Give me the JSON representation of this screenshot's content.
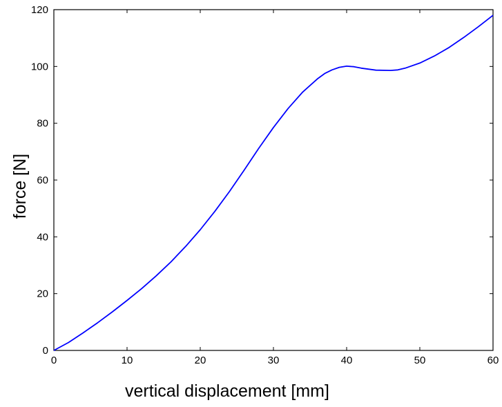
{
  "chart_data": {
    "type": "line",
    "title": "",
    "xlabel": "vertical displacement [mm]",
    "ylabel": "force  [N]",
    "xlim": [
      0,
      60
    ],
    "ylim": [
      0,
      120
    ],
    "xticks": [
      0,
      10,
      20,
      30,
      40,
      50,
      60
    ],
    "yticks": [
      0,
      20,
      40,
      60,
      80,
      100,
      120
    ],
    "grid": false,
    "legend": "none",
    "series": [
      {
        "color": "#0000ff",
        "x": [
          0,
          2,
          4,
          6,
          8,
          10,
          12,
          14,
          16,
          18,
          20,
          22,
          24,
          26,
          28,
          30,
          32,
          34,
          36,
          37,
          38,
          39,
          40,
          41,
          42,
          44,
          46,
          47,
          48,
          50,
          52,
          54,
          56,
          58,
          60
        ],
        "y": [
          0,
          2.8,
          6.2,
          9.8,
          13.6,
          17.6,
          21.8,
          26.3,
          31.2,
          36.6,
          42.5,
          49,
          56,
          63.5,
          71.2,
          78.5,
          85.2,
          91,
          95.6,
          97.5,
          98.8,
          99.7,
          100.1,
          99.9,
          99.4,
          98.7,
          98.6,
          98.8,
          99.4,
          101.2,
          103.7,
          106.7,
          110.2,
          114,
          118
        ]
      }
    ]
  }
}
